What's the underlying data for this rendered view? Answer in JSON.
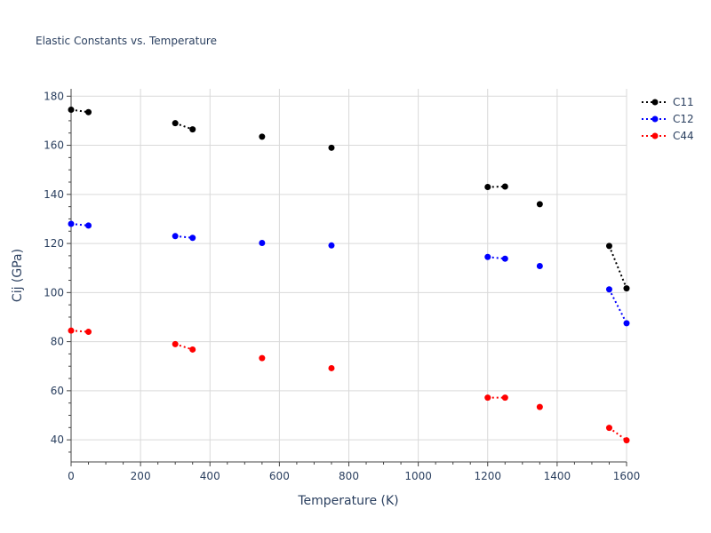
{
  "chart_data": {
    "type": "scatter",
    "title": "Elastic Constants vs. Temperature",
    "xlabel": "Temperature (K)",
    "ylabel": "Cij (GPa)",
    "xlim": [
      0,
      1600
    ],
    "ylim": [
      31,
      183
    ],
    "x_ticks": [
      0,
      200,
      400,
      600,
      800,
      1000,
      1200,
      1400,
      1600
    ],
    "y_ticks": [
      40,
      60,
      80,
      100,
      120,
      140,
      160,
      180
    ],
    "grid": true,
    "legend_position": "top-right",
    "line_style": "dotted",
    "series": [
      {
        "name": "C11",
        "color": "#000000",
        "segments": [
          [
            [
              0,
              174.5
            ],
            [
              50,
              173.5
            ]
          ],
          [
            [
              300,
              169
            ],
            [
              350,
              166.5
            ]
          ],
          [
            [
              550,
              163.5
            ]
          ],
          [
            [
              750,
              159
            ]
          ],
          [
            [
              1200,
              143
            ],
            [
              1250,
              143.2
            ]
          ],
          [
            [
              1350,
              136
            ]
          ],
          [
            [
              1550,
              119
            ],
            [
              1600,
              101.7
            ]
          ]
        ]
      },
      {
        "name": "C12",
        "color": "#0000ff",
        "segments": [
          [
            [
              0,
              128
            ],
            [
              50,
              127.3
            ]
          ],
          [
            [
              300,
              123
            ],
            [
              350,
              122.3
            ]
          ],
          [
            [
              550,
              120.2
            ]
          ],
          [
            [
              750,
              119.2
            ]
          ],
          [
            [
              1200,
              114.5
            ],
            [
              1250,
              113.8
            ]
          ],
          [
            [
              1350,
              110.8
            ]
          ],
          [
            [
              1550,
              101.3
            ],
            [
              1600,
              87.5
            ]
          ]
        ]
      },
      {
        "name": "C44",
        "color": "#ff0000",
        "segments": [
          [
            [
              0,
              84.5
            ],
            [
              50,
              84
            ]
          ],
          [
            [
              300,
              79
            ],
            [
              350,
              76.8
            ]
          ],
          [
            [
              550,
              73.3
            ]
          ],
          [
            [
              750,
              69.2
            ]
          ],
          [
            [
              1200,
              57.2
            ],
            [
              1250,
              57.2
            ]
          ],
          [
            [
              1350,
              53.4
            ]
          ],
          [
            [
              1550,
              44.9
            ],
            [
              1600,
              39.8
            ]
          ]
        ]
      }
    ]
  }
}
